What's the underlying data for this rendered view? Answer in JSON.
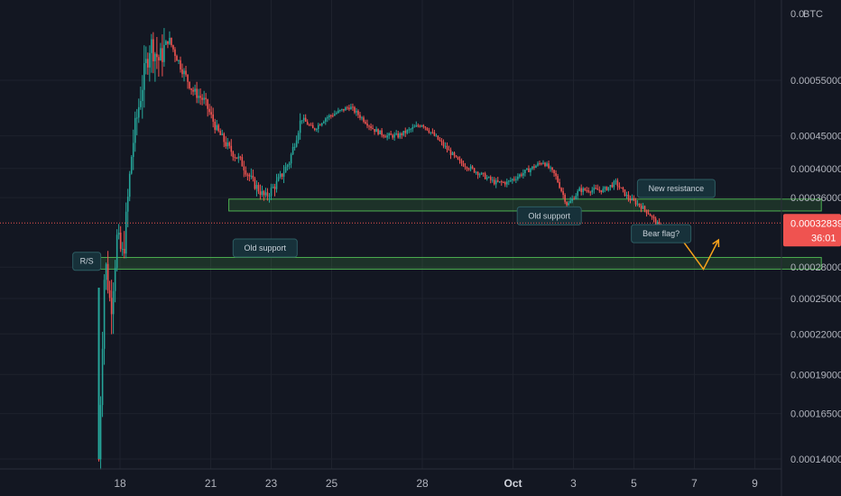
{
  "chart_data": {
    "type": "candlestick",
    "symbol_currency": "BTC",
    "top_label_partial": "0.0",
    "y_ticks": [
      "0.00055000",
      "0.00045000",
      "0.00040000",
      "0.00036000",
      "0.00028000",
      "0.00025000",
      "0.00022000",
      "0.00019000",
      "0.00016500",
      "0.00014000"
    ],
    "y_tick_values": [
      0.00055,
      0.00045,
      0.0004,
      0.00036,
      0.00028,
      0.00025,
      0.00022,
      0.00019,
      0.000165,
      0.00014
    ],
    "x_ticks": [
      {
        "label": "18",
        "day": 18
      },
      {
        "label": "21",
        "day": 21
      },
      {
        "label": "23",
        "day": 23
      },
      {
        "label": "25",
        "day": 25
      },
      {
        "label": "28",
        "day": 28
      },
      {
        "label": "Oct",
        "day": 31
      },
      {
        "label": "3",
        "day": 33
      },
      {
        "label": "5",
        "day": 35
      },
      {
        "label": "7",
        "day": 37
      },
      {
        "label": "9",
        "day": 39
      }
    ],
    "current_price": "0.00032839",
    "current_price_value": 0.00032839,
    "countdown": "36:01",
    "colors": {
      "up": "#26a69a",
      "down": "#ef5350",
      "zone": "#4caf50",
      "projection": "#f7a21b",
      "price_line": "#ef5350",
      "background": "#131722"
    },
    "zones": [
      {
        "label": "R/S",
        "day_start": 17.3,
        "day_end": 41.2,
        "price_low": 0.000278,
        "price_high": 0.00029
      },
      {
        "label": "New resistance",
        "day_start": 21.6,
        "day_end": 41.2,
        "price_low": 0.000343,
        "price_high": 0.000358
      }
    ],
    "annotations": [
      {
        "label": "Old support",
        "day": 22.8,
        "price": 0.0003
      },
      {
        "label": "Old support",
        "day": 32.2,
        "price": 0.000337
      },
      {
        "label": "New resistance",
        "day": 36.4,
        "price": 0.000372
      },
      {
        "label": "Bear flag?",
        "day": 35.9,
        "price": 0.000316
      },
      {
        "label": "R/S",
        "day": 16.9,
        "price": 0.000286
      }
    ],
    "projection": [
      {
        "day": 35.9,
        "price": 0.000322
      },
      {
        "day": 36.1,
        "price": 0.000309
      },
      {
        "day": 36.4,
        "price": 0.000318
      },
      {
        "day": 37.3,
        "price": 0.000278
      },
      {
        "day": 37.8,
        "price": 0.000309
      }
    ],
    "price_path": [
      {
        "day": 17.3,
        "price": 0.00014
      },
      {
        "day": 17.5,
        "price": 0.00029
      },
      {
        "day": 17.7,
        "price": 0.00024
      },
      {
        "day": 17.9,
        "price": 0.00031
      },
      {
        "day": 18.1,
        "price": 0.00029
      },
      {
        "day": 18.4,
        "price": 0.00043
      },
      {
        "day": 18.7,
        "price": 0.00053
      },
      {
        "day": 19.0,
        "price": 0.00063
      },
      {
        "day": 19.3,
        "price": 0.00059
      },
      {
        "day": 19.6,
        "price": 0.00064
      },
      {
        "day": 20.0,
        "price": 0.00058
      },
      {
        "day": 20.4,
        "price": 0.00053
      },
      {
        "day": 20.8,
        "price": 0.00051
      },
      {
        "day": 21.2,
        "price": 0.00046
      },
      {
        "day": 21.6,
        "price": 0.00043
      },
      {
        "day": 22.0,
        "price": 0.00041
      },
      {
        "day": 22.4,
        "price": 0.00038
      },
      {
        "day": 22.8,
        "price": 0.00036
      },
      {
        "day": 23.2,
        "price": 0.00038
      },
      {
        "day": 23.6,
        "price": 0.00041
      },
      {
        "day": 24.0,
        "price": 0.00048
      },
      {
        "day": 24.4,
        "price": 0.00046
      },
      {
        "day": 24.8,
        "price": 0.00048
      },
      {
        "day": 25.2,
        "price": 0.00049
      },
      {
        "day": 25.6,
        "price": 0.0005
      },
      {
        "day": 26.0,
        "price": 0.00048
      },
      {
        "day": 26.4,
        "price": 0.00046
      },
      {
        "day": 26.8,
        "price": 0.00045
      },
      {
        "day": 27.2,
        "price": 0.00045
      },
      {
        "day": 27.6,
        "price": 0.00046
      },
      {
        "day": 28.0,
        "price": 0.00047
      },
      {
        "day": 28.4,
        "price": 0.00045
      },
      {
        "day": 28.8,
        "price": 0.00043
      },
      {
        "day": 29.2,
        "price": 0.00041
      },
      {
        "day": 29.6,
        "price": 0.0004
      },
      {
        "day": 30.0,
        "price": 0.00039
      },
      {
        "day": 30.4,
        "price": 0.00038
      },
      {
        "day": 30.8,
        "price": 0.00038
      },
      {
        "day": 31.2,
        "price": 0.00039
      },
      {
        "day": 31.6,
        "price": 0.0004
      },
      {
        "day": 32.0,
        "price": 0.00041
      },
      {
        "day": 32.4,
        "price": 0.00039
      },
      {
        "day": 32.8,
        "price": 0.00035
      },
      {
        "day": 33.2,
        "price": 0.00037
      },
      {
        "day": 33.6,
        "price": 0.00037
      },
      {
        "day": 34.0,
        "price": 0.00037
      },
      {
        "day": 34.4,
        "price": 0.00038
      },
      {
        "day": 34.8,
        "price": 0.00036
      },
      {
        "day": 35.2,
        "price": 0.00035
      },
      {
        "day": 35.5,
        "price": 0.00034
      },
      {
        "day": 35.7,
        "price": 0.00033
      },
      {
        "day": 35.9,
        "price": 0.000322
      }
    ]
  }
}
